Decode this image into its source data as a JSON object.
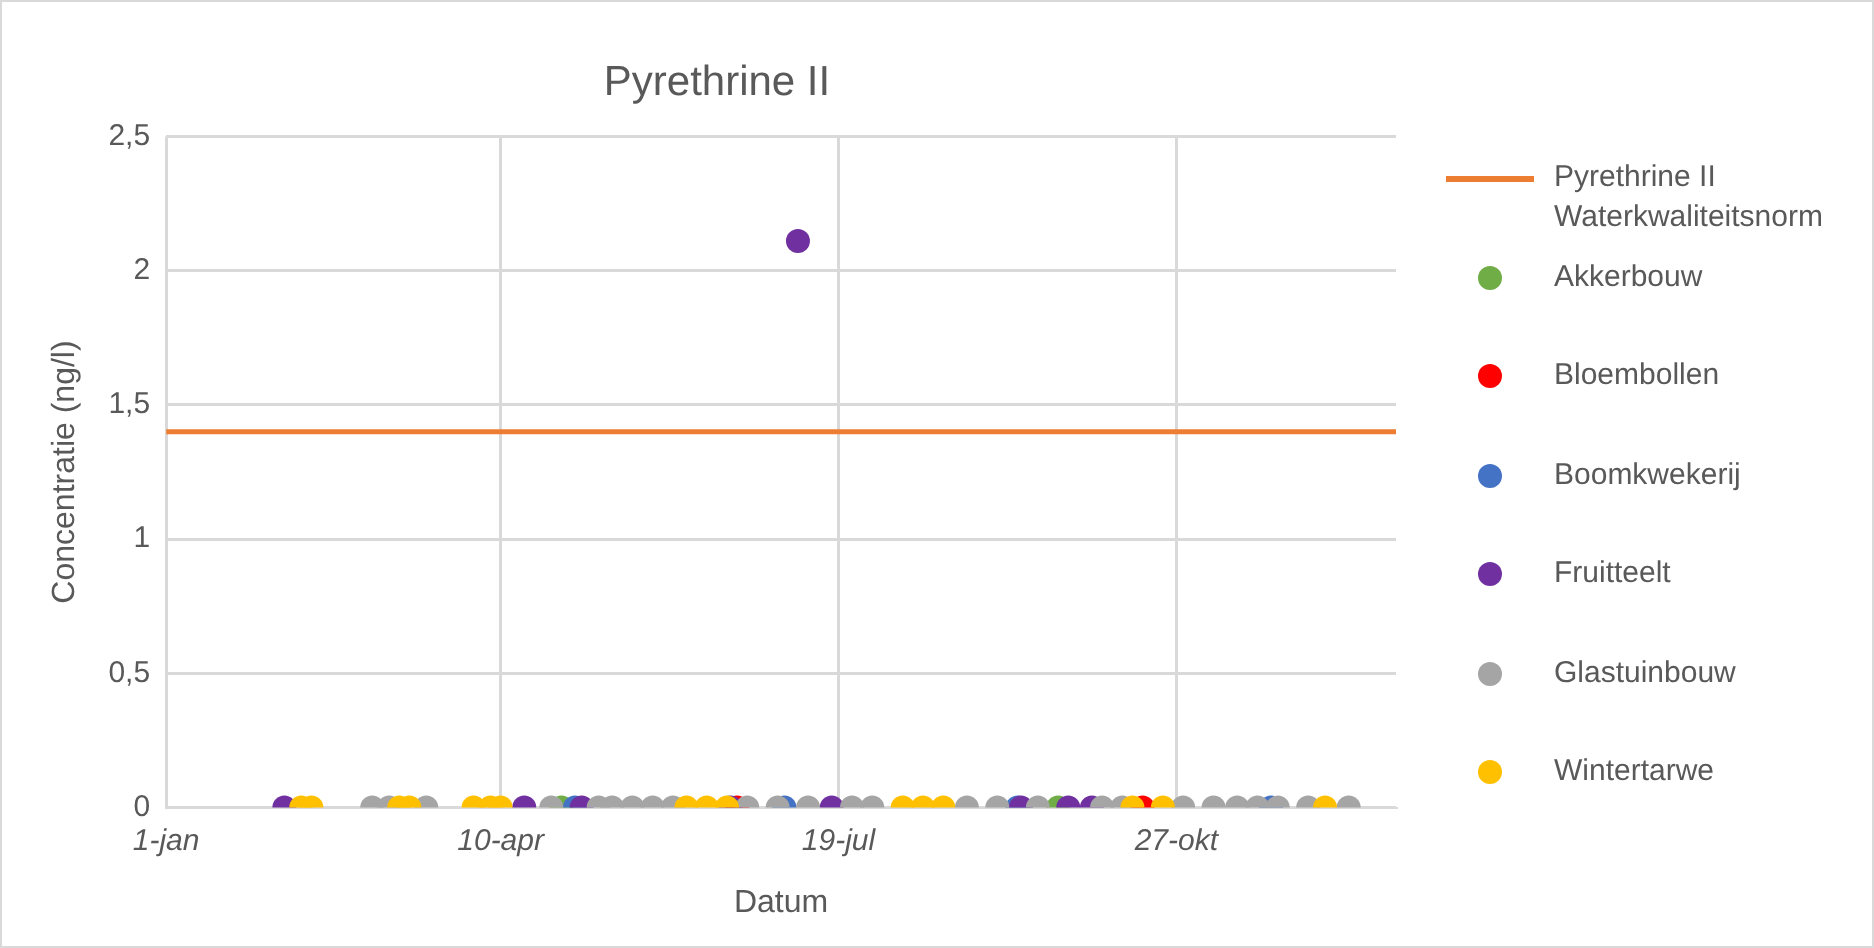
{
  "chart_data": {
    "type": "scatter",
    "title": "Pyrethrine II",
    "xlabel": "Datum",
    "ylabel": "Concentratie (ng/l)",
    "xlim": [
      "--01-01",
      "--12-31"
    ],
    "xticks": [
      {
        "value": "--01-01",
        "label": "1-jan"
      },
      {
        "value": "--04-10",
        "label": "10-apr"
      },
      {
        "value": "--07-19",
        "label": "19-jul"
      },
      {
        "value": "--10-27",
        "label": "27-okt"
      }
    ],
    "ylim": [
      0,
      2.5
    ],
    "yticks": [
      {
        "value": 0,
        "label": "0"
      },
      {
        "value": 0.5,
        "label": "0,5"
      },
      {
        "value": 1,
        "label": "1"
      },
      {
        "value": 1.5,
        "label": "1,5"
      },
      {
        "value": 2,
        "label": "2"
      },
      {
        "value": 2.5,
        "label": "2,5"
      }
    ],
    "grid": true,
    "legend": "right",
    "marker": "circle",
    "series": [
      {
        "name": "Pyrethrine II Waterkwaliteitsnorm",
        "type": "line",
        "marker": "none",
        "color": "#ed7d31",
        "x": [
          "--01-01",
          "--12-31"
        ],
        "values": [
          1.4,
          1.4
        ]
      },
      {
        "name": "Akkerbouw",
        "color": "#70ad47",
        "x": [
          "--04-28",
          "--09-22"
        ],
        "values": [
          0,
          0
        ]
      },
      {
        "name": "Bloembollen",
        "color": "#ff0000",
        "x": [
          "--06-19",
          "--10-17"
        ],
        "values": [
          0,
          0
        ]
      },
      {
        "name": "Boomkwekerij",
        "color": "#4472c4",
        "x": [
          "--05-02",
          "--07-03",
          "--09-10",
          "--11-24"
        ],
        "values": [
          0,
          0,
          0,
          0
        ]
      },
      {
        "name": "Fruitteelt",
        "color": "#7030a0",
        "x": [
          "--02-05",
          "--04-17",
          "--05-04",
          "--06-17",
          "--07-07",
          "--07-17",
          "--09-11",
          "--09-25",
          "--10-02"
        ],
        "values": [
          0,
          0,
          0,
          0,
          2.11,
          0,
          0,
          0,
          0
        ]
      },
      {
        "name": "Glastuinbouw",
        "color": "#a5a5a5",
        "x": [
          "--03-03",
          "--03-08",
          "--03-19",
          "--04-25",
          "--05-09",
          "--05-13",
          "--05-19",
          "--05-25",
          "--05-31",
          "--06-22",
          "--07-01",
          "--07-10",
          "--07-23",
          "--07-29",
          "--08-26",
          "--09-04",
          "--09-16",
          "--10-05",
          "--10-11",
          "--10-29",
          "--11-07",
          "--11-14",
          "--11-20",
          "--11-26",
          "--12-05",
          "--12-17"
        ],
        "values": [
          0,
          0,
          0,
          0,
          0,
          0,
          0,
          0,
          0,
          0,
          0,
          0,
          0,
          0,
          0,
          0,
          0,
          0,
          0,
          0,
          0,
          0,
          0,
          0,
          0,
          0
        ]
      },
      {
        "name": "Wintertarwe",
        "color": "#ffc000",
        "x": [
          "--02-10",
          "--02-13",
          "--03-11",
          "--03-14",
          "--04-02",
          "--04-07",
          "--04-10",
          "--06-04",
          "--06-10",
          "--06-16",
          "--08-07",
          "--08-13",
          "--08-19",
          "--10-14",
          "--10-23",
          "--12-10"
        ],
        "values": [
          0,
          0,
          0,
          0,
          0,
          0,
          0,
          0,
          0,
          0,
          0,
          0,
          0,
          0,
          0,
          0
        ]
      }
    ]
  }
}
